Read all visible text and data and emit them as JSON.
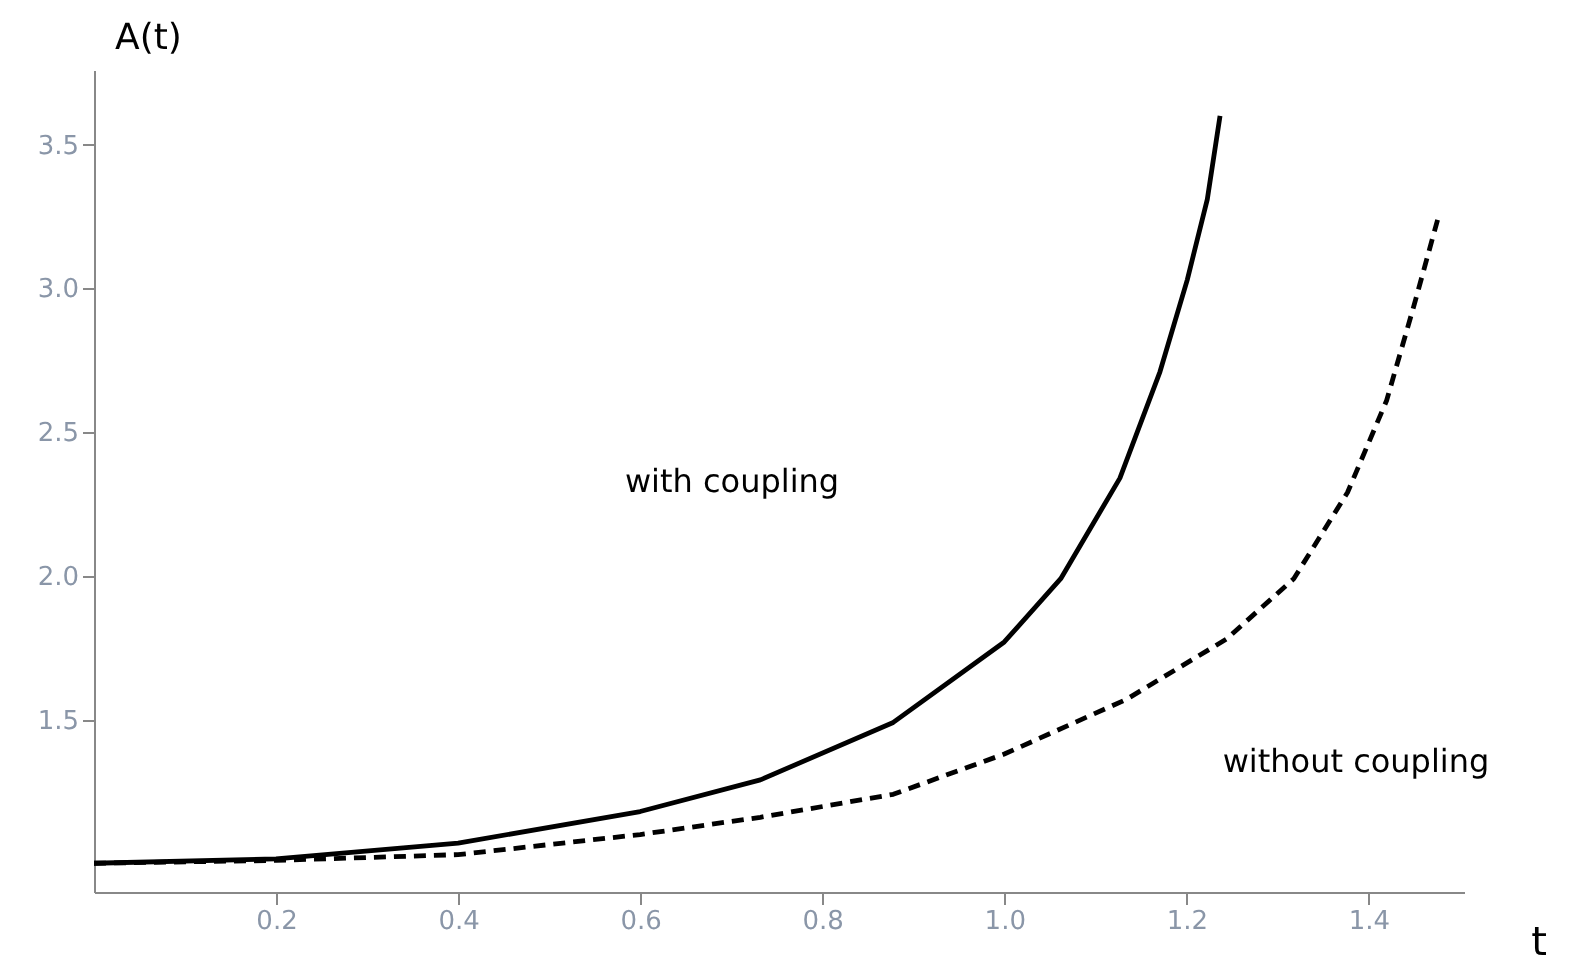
{
  "chart_data": {
    "type": "line",
    "xlabel": "t",
    "ylabel": "A(t)",
    "xlim": [
      0,
      1.505
    ],
    "ylim": [
      0.9,
      3.76
    ],
    "xticks": [
      0.2,
      0.4,
      0.6,
      0.8,
      {
        "value": 1,
        "label": "1.0"
      },
      1.2,
      1.4
    ],
    "yticks": [
      1.5,
      {
        "value": 2,
        "label": "2.0"
      },
      2.5,
      {
        "value": 3,
        "label": "3.0"
      },
      3.5
    ],
    "grid": false,
    "marker": "none",
    "series": [
      {
        "color": "#000000",
        "line_style": "solid",
        "x": [
          0,
          0.2,
          0.4,
          0.6,
          0.732,
          0.878,
          1.0,
          1.062,
          1.127,
          1.171,
          1.201,
          1.223,
          1.237
        ],
        "values": [
          1.0,
          1.015,
          1.07,
          1.18,
          1.29,
          1.49,
          1.77,
          1.99,
          2.34,
          2.71,
          3.03,
          3.31,
          3.6
        ]
      },
      {
        "color": "#000000",
        "line_style": "dashed",
        "x": [
          0,
          0.2,
          0.4,
          0.6,
          0.732,
          0.878,
          1.0,
          1.134,
          1.244,
          1.318,
          1.377,
          1.42,
          1.45,
          1.477
        ],
        "values": [
          1.0,
          1.01,
          1.03,
          1.1,
          1.16,
          1.24,
          1.38,
          1.57,
          1.78,
          1.99,
          2.29,
          2.61,
          2.94,
          3.25
        ]
      }
    ],
    "annotations": [
      "with coupling",
      "without coupling"
    ]
  }
}
